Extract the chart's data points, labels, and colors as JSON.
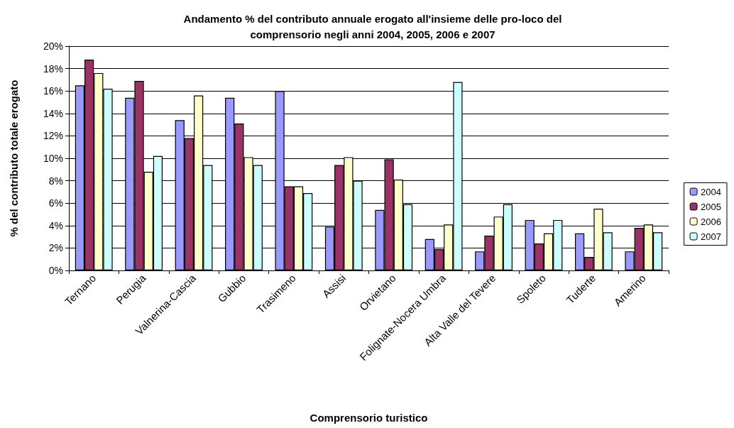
{
  "chart_data": {
    "type": "bar",
    "title": "Andamento % del contributo annuale erogato all'insieme delle pro-loco del\ncomprensorio negli anni 2004, 2005, 2006 e 2007",
    "xlabel": "Comprensorio turistico",
    "ylabel": "% del contributo totale erogato",
    "categories": [
      "Ternano",
      "Perugia",
      "Valnerina-Cascia",
      "Gubbio",
      "Trasimeno",
      "Assisi",
      "Orvietano",
      "Folignate-Nocera Umbra",
      "Alta Valle del Tevere",
      "Spoleto",
      "Tuderte",
      "Amerino"
    ],
    "series": [
      {
        "name": "2004",
        "color": "#9999ff",
        "values": [
          16.5,
          15.4,
          13.4,
          15.4,
          16.0,
          3.9,
          5.4,
          2.8,
          1.7,
          4.5,
          3.3,
          1.7
        ]
      },
      {
        "name": "2005",
        "color": "#993366",
        "values": [
          18.8,
          16.9,
          11.8,
          13.1,
          7.5,
          9.4,
          9.9,
          1.9,
          3.1,
          2.4,
          1.2,
          3.8
        ]
      },
      {
        "name": "2006",
        "color": "#ffffcc",
        "values": [
          17.6,
          8.8,
          15.6,
          10.1,
          7.5,
          10.1,
          8.1,
          4.1,
          4.8,
          3.3,
          5.5,
          4.1
        ]
      },
      {
        "name": "2007",
        "color": "#ccffff",
        "values": [
          16.2,
          10.2,
          9.4,
          9.4,
          6.9,
          8.0,
          5.9,
          16.8,
          5.9,
          4.5,
          3.4,
          3.4
        ]
      }
    ],
    "ylim": [
      0,
      20
    ],
    "yticks": [
      {
        "value": 0,
        "label": "0%"
      },
      {
        "value": 2,
        "label": "2%"
      },
      {
        "value": 4,
        "label": "4%"
      },
      {
        "value": 6,
        "label": "6%"
      },
      {
        "value": 8,
        "label": "8%"
      },
      {
        "value": 10,
        "label": "10%"
      },
      {
        "value": 12,
        "label": "12%"
      },
      {
        "value": 14,
        "label": "14%"
      },
      {
        "value": 16,
        "label": "16%"
      },
      {
        "value": 18,
        "label": "18%"
      },
      {
        "value": 20,
        "label": "20%"
      }
    ],
    "grid": "y",
    "legend": "right"
  }
}
